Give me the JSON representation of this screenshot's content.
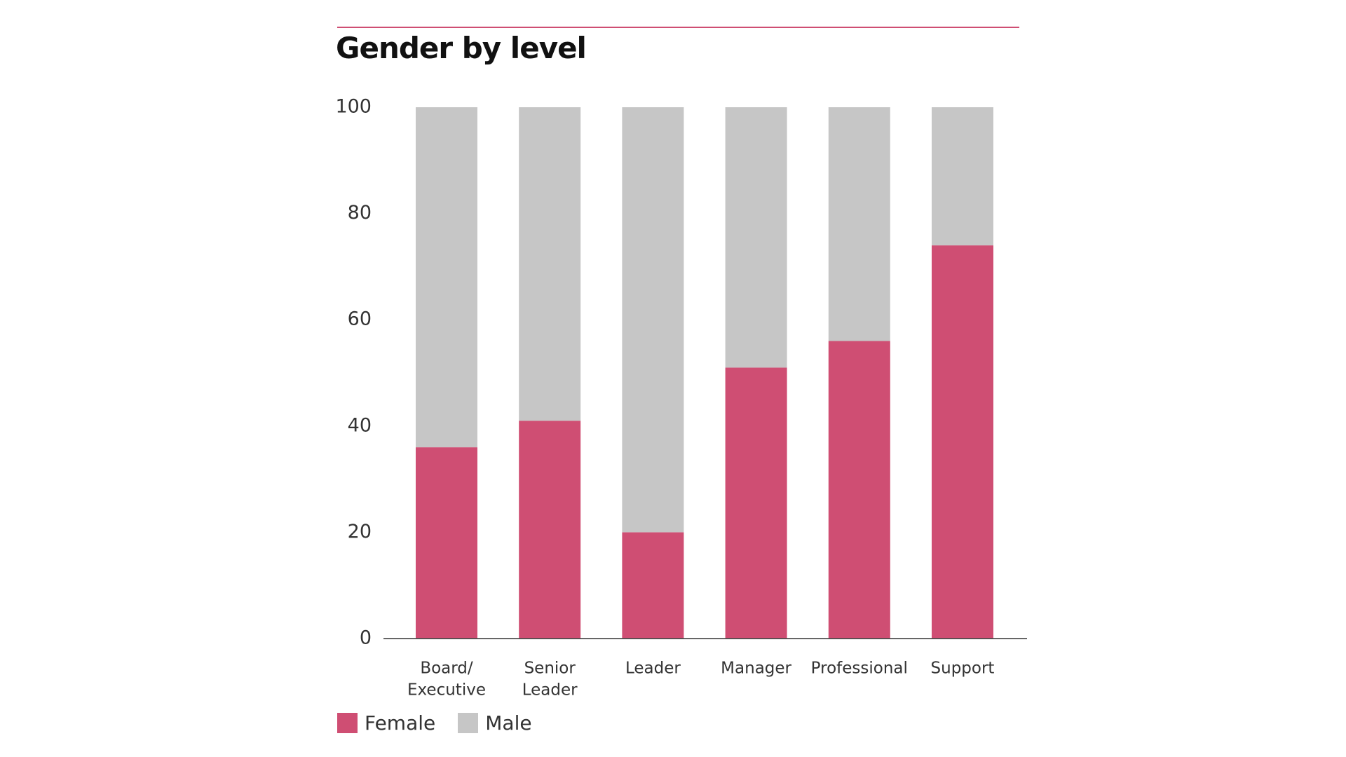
{
  "colors": {
    "accent": "#cf4e73",
    "female": "#cf4e73",
    "male": "#c6c6c6",
    "axis": "#333333",
    "text": "#333333"
  },
  "chart_data": {
    "type": "bar",
    "stacked": true,
    "title": "Gender by level",
    "xlabel": "",
    "ylabel": "",
    "ylim": [
      0,
      100
    ],
    "yticks": [
      0,
      20,
      40,
      60,
      80,
      100
    ],
    "grid": false,
    "legend_position": "bottom-left",
    "categories": [
      [
        "Board/",
        "Executive"
      ],
      [
        "Senior",
        "Leader"
      ],
      [
        "Leader"
      ],
      [
        "Manager"
      ],
      [
        "Professional"
      ],
      [
        "Support"
      ]
    ],
    "series": [
      {
        "name": "Female",
        "color": "#cf4e73",
        "values": [
          36,
          41,
          20,
          51,
          56,
          74
        ]
      },
      {
        "name": "Male",
        "color": "#c6c6c6",
        "values": [
          64,
          59,
          80,
          49,
          44,
          26
        ]
      }
    ]
  }
}
